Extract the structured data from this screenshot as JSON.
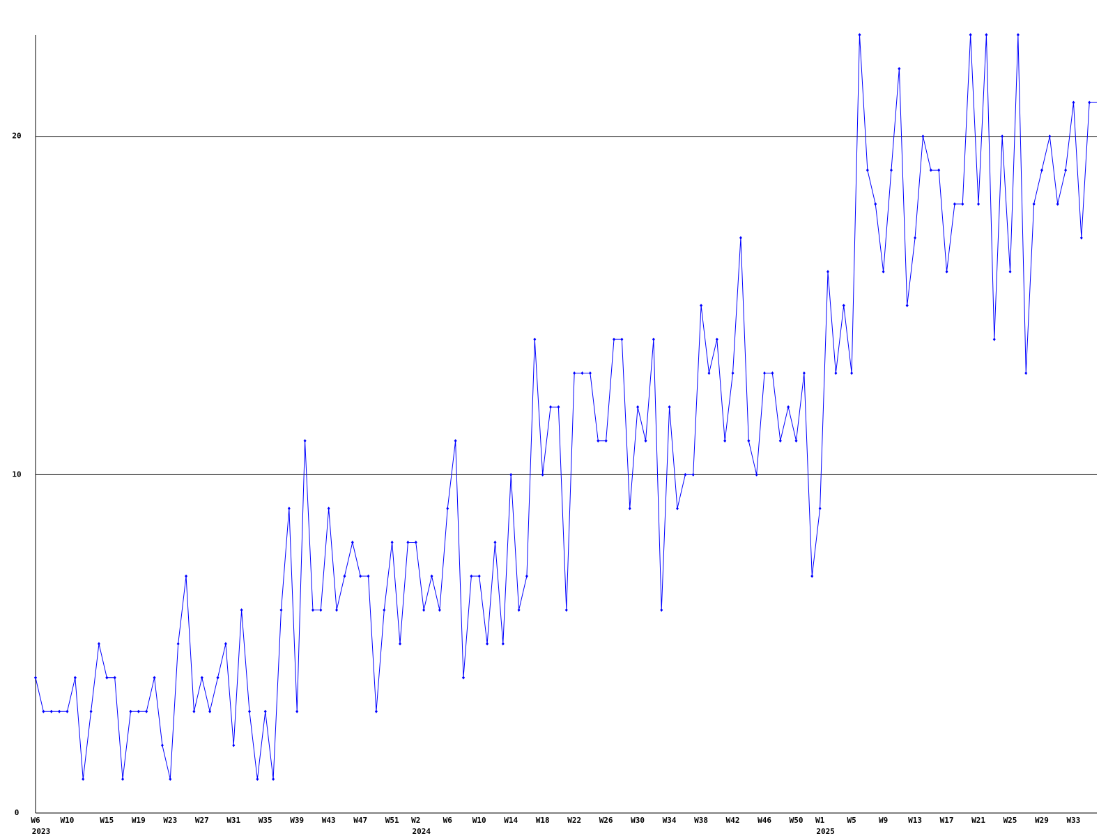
{
  "chart_data": {
    "type": "line",
    "categories": [
      "W6",
      null,
      null,
      null,
      "W10",
      null,
      null,
      null,
      null,
      "W15",
      null,
      null,
      null,
      "W19",
      null,
      null,
      null,
      "W23",
      null,
      null,
      null,
      "W27",
      null,
      null,
      null,
      "W31",
      null,
      null,
      null,
      "W35",
      null,
      null,
      null,
      "W39",
      null,
      null,
      null,
      "W43",
      null,
      null,
      null,
      "W47",
      null,
      null,
      null,
      "W51",
      null,
      null,
      "W2",
      null,
      null,
      null,
      "W6",
      null,
      null,
      null,
      "W10",
      null,
      null,
      null,
      "W14",
      null,
      null,
      null,
      "W18",
      null,
      null,
      null,
      "W22",
      null,
      null,
      null,
      "W26",
      null,
      null,
      null,
      "W30",
      null,
      null,
      null,
      "W34",
      null,
      null,
      null,
      "W38",
      null,
      null,
      null,
      "W42",
      null,
      null,
      null,
      "W46",
      null,
      null,
      null,
      "W50",
      null,
      null,
      "W1",
      null,
      null,
      null,
      "W5",
      null,
      null,
      null,
      "W9",
      null,
      null,
      null,
      "W13",
      null,
      null,
      null,
      "W17",
      null,
      null,
      null,
      "W21",
      null,
      null,
      null,
      "W25",
      null,
      null,
      null,
      "W29",
      null,
      null,
      null,
      "W33",
      null,
      null
    ],
    "category_years": [
      "2023",
      null,
      null,
      null,
      null,
      null,
      null,
      null,
      null,
      null,
      null,
      null,
      null,
      null,
      null,
      null,
      null,
      null,
      null,
      null,
      null,
      null,
      null,
      null,
      null,
      null,
      null,
      null,
      null,
      null,
      null,
      null,
      null,
      null,
      null,
      null,
      null,
      null,
      null,
      null,
      null,
      null,
      null,
      null,
      null,
      null,
      null,
      null,
      "2024",
      null,
      null,
      null,
      null,
      null,
      null,
      null,
      null,
      null,
      null,
      null,
      null,
      null,
      null,
      null,
      null,
      null,
      null,
      null,
      null,
      null,
      null,
      null,
      null,
      null,
      null,
      null,
      null,
      null,
      null,
      null,
      null,
      null,
      null,
      null,
      null,
      null,
      null,
      null,
      null,
      null,
      null,
      null,
      null,
      null,
      null,
      null,
      null,
      null,
      null,
      "2025",
      null,
      null,
      null,
      null,
      null,
      null,
      null,
      null,
      null,
      null,
      null,
      null,
      null,
      null,
      null,
      null,
      null,
      null,
      null,
      null,
      null,
      null,
      null,
      null,
      null,
      null,
      null,
      null,
      null,
      null,
      null,
      null,
      null,
      null
    ],
    "series": [
      {
        "color": "#0000ff",
        "values": [
          4,
          3,
          3,
          3,
          3,
          4,
          1,
          3,
          5,
          4,
          4,
          1,
          3,
          3,
          3,
          4,
          2,
          1,
          5,
          7,
          3,
          4,
          3,
          4,
          5,
          2,
          6,
          3,
          1,
          3,
          1,
          6,
          9,
          3,
          11,
          6,
          6,
          9,
          6,
          7,
          8,
          7,
          7,
          3,
          6,
          8,
          5,
          8,
          8,
          6,
          7,
          6,
          9,
          11,
          4,
          7,
          7,
          5,
          8,
          5,
          10,
          6,
          7,
          14,
          10,
          12,
          12,
          6,
          13,
          13,
          13,
          11,
          11,
          14,
          14,
          9,
          12,
          11,
          14,
          6,
          12,
          9,
          10,
          10,
          15,
          13,
          14,
          11,
          13,
          17,
          11,
          10,
          13,
          13,
          11,
          12,
          11,
          13,
          7,
          9,
          16,
          13,
          15,
          13,
          23,
          19,
          18,
          16,
          19,
          22,
          15,
          17,
          20,
          19,
          19,
          16,
          18,
          18,
          23,
          18,
          23,
          14,
          20,
          16,
          23,
          13,
          18,
          19,
          20,
          18,
          19,
          21,
          17,
          21
        ]
      }
    ],
    "ylim": [
      0,
      23
    ],
    "yticks": [
      0,
      10,
      20
    ],
    "grid": true
  }
}
